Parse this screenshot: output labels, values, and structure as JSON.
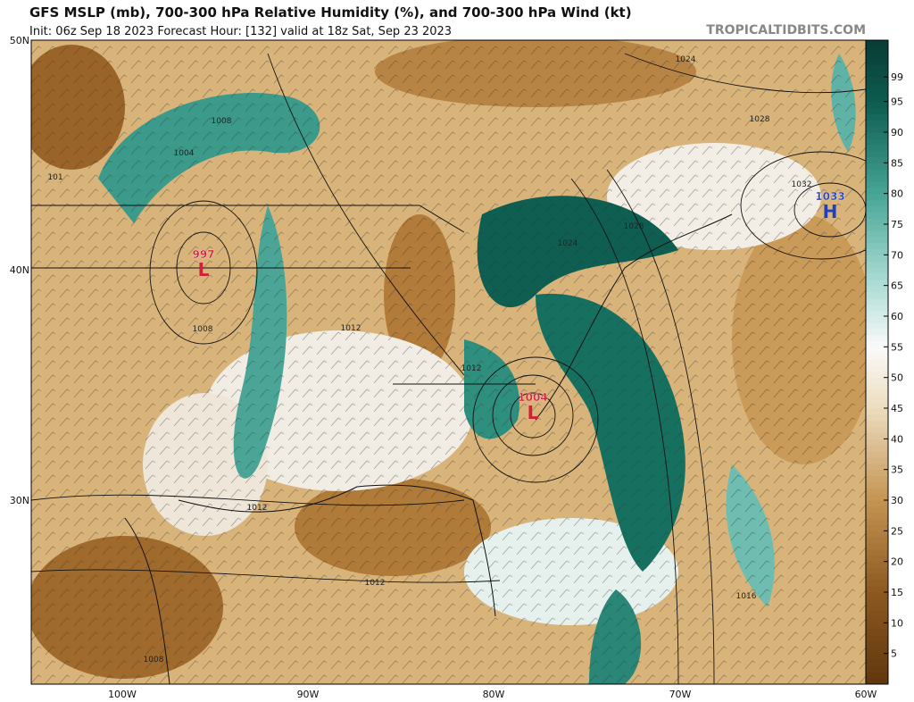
{
  "header": {
    "title": "GFS MSLP (mb), 700-300 hPa Relative Humidity (%), and 700-300 hPa Wind (kt)",
    "subtitle": "Init: 06z Sep 18 2023   Forecast Hour: [132]   valid at 18z Sat, Sep 23 2023",
    "site": "TROPICALTIDBITS.COM"
  },
  "map": {
    "lat_labels": [
      "50N",
      "40N",
      "30N"
    ],
    "lon_labels": [
      "100W",
      "90W",
      "80W",
      "70W",
      "60W"
    ],
    "centers": [
      {
        "letter": "L",
        "pressure": "997"
      },
      {
        "letter": "L",
        "pressure": "1004"
      },
      {
        "letter": "H",
        "pressure": "1033"
      }
    ],
    "isobar_labels": [
      "1008",
      "1004",
      "101",
      "1008",
      "1012",
      "1012",
      "1012",
      "1012",
      "1008",
      "1016",
      "1024",
      "1028",
      "1028",
      "1024",
      "1032"
    ]
  },
  "colorbar": {
    "ticks": [
      5,
      10,
      15,
      20,
      25,
      30,
      35,
      40,
      45,
      50,
      55,
      60,
      65,
      70,
      75,
      80,
      85,
      90,
      95,
      99
    ],
    "lim": [
      0,
      105
    ]
  }
}
